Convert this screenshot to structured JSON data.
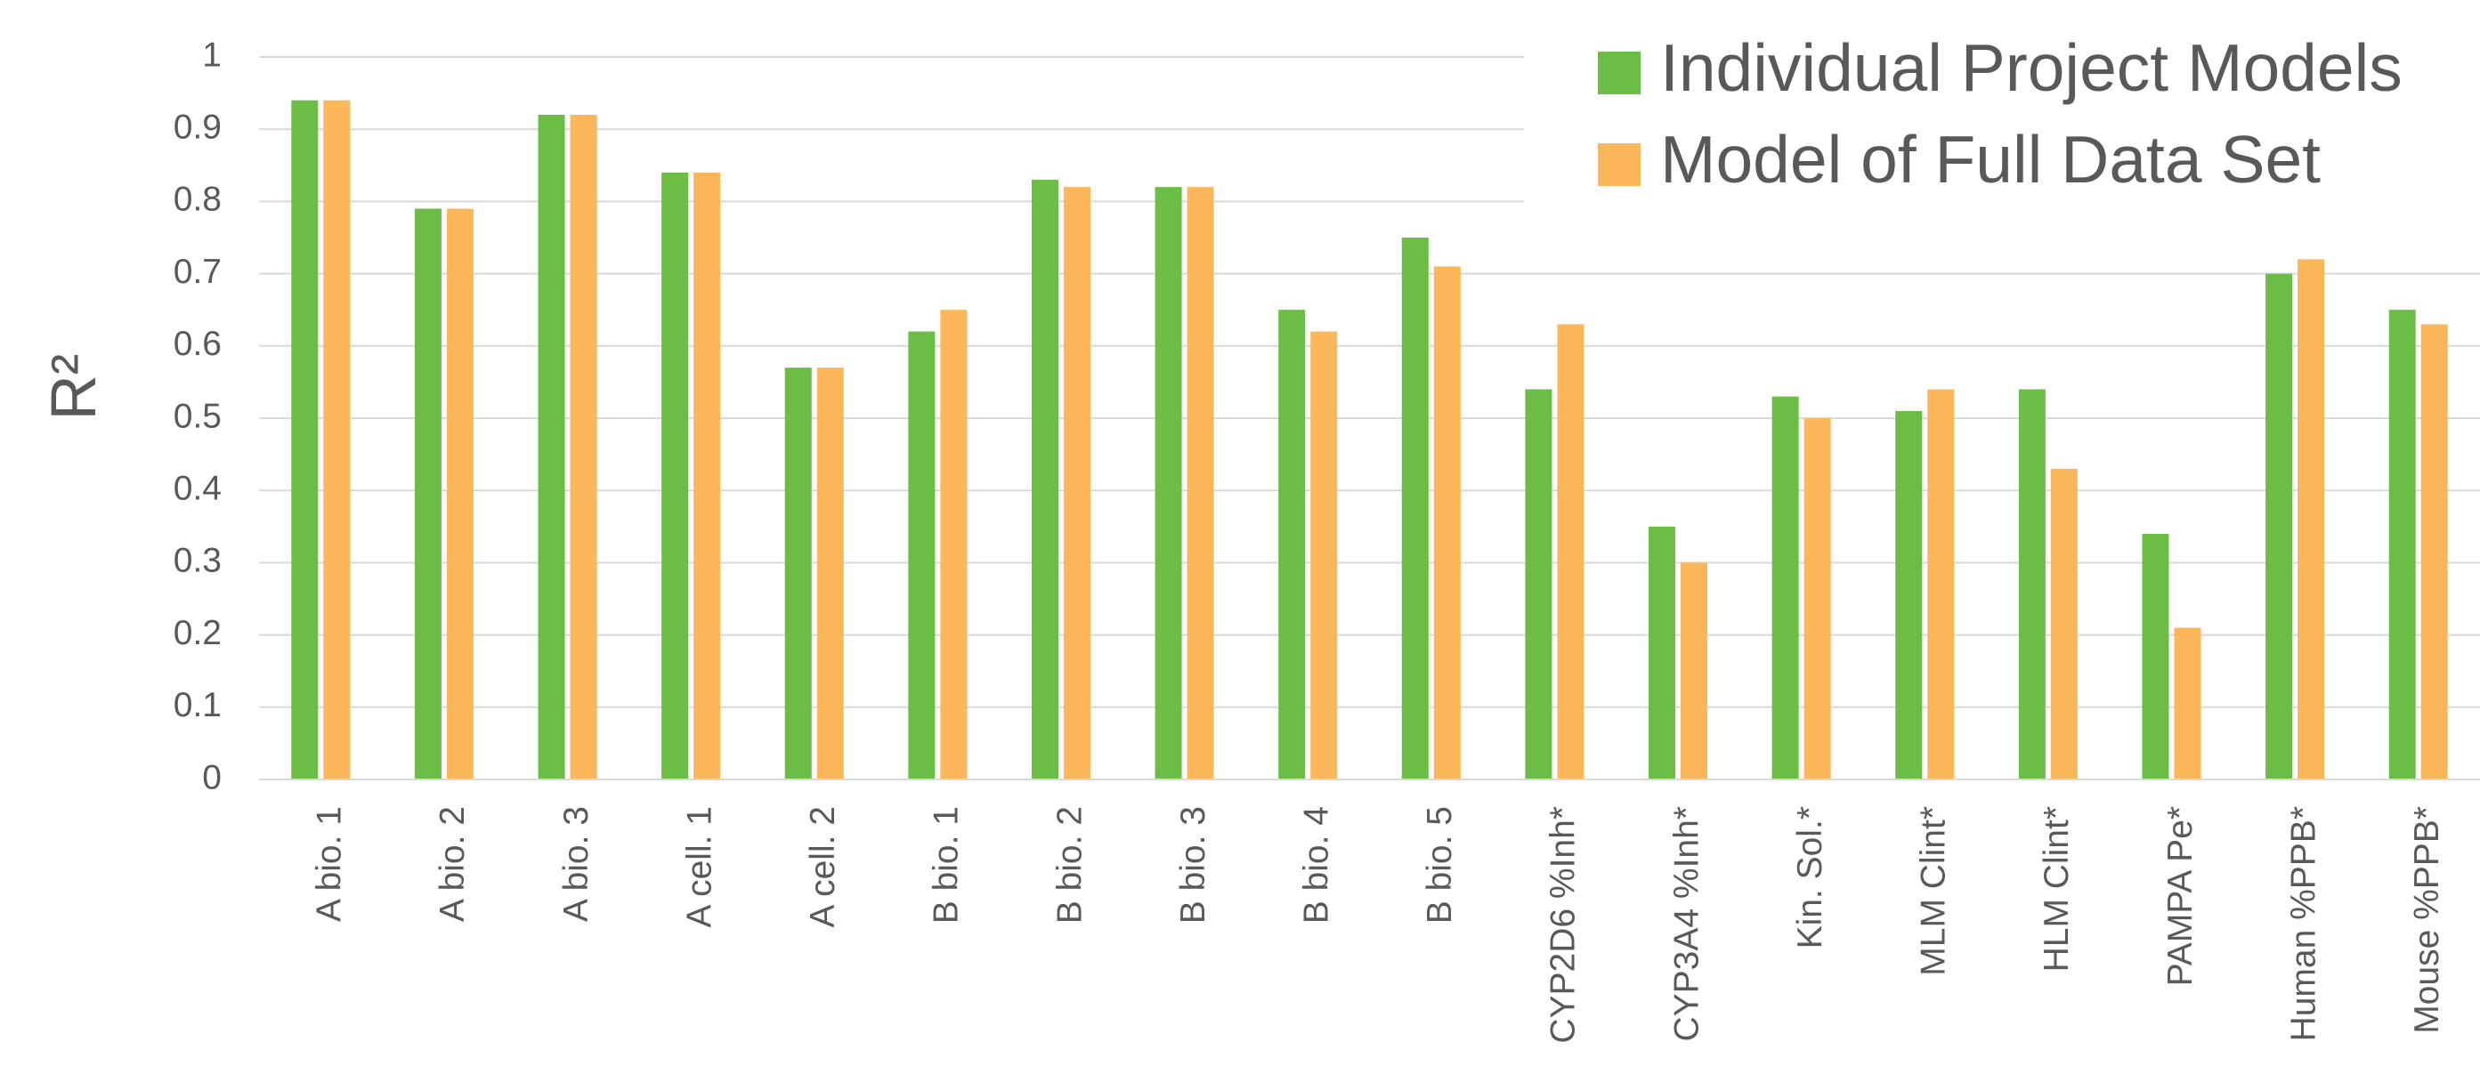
{
  "chart_data": {
    "type": "bar",
    "y_label": "R²",
    "categories": [
      "A bio. 1",
      "A bio. 2",
      "A bio. 3",
      "A cell. 1",
      "A cell. 2",
      "B bio. 1",
      "B bio. 2",
      "B bio. 3",
      "B bio. 4",
      "B bio. 5",
      "CYP2D6 %Inh*",
      "CYP3A4 %Inh*",
      "Kin. Sol.*",
      "MLM Clint*",
      "HLM Clint*",
      "PAMPA Pe*",
      "Human %PPB*",
      "Mouse %PPB*"
    ],
    "series": [
      {
        "name": "Individual Project Models",
        "color": "#6cbd45",
        "values": [
          0.94,
          0.79,
          0.92,
          0.84,
          0.57,
          0.62,
          0.83,
          0.82,
          0.65,
          0.75,
          0.54,
          0.35,
          0.53,
          0.51,
          0.54,
          0.34,
          0.7,
          0.65
        ]
      },
      {
        "name": "Model of Full Data Set",
        "color": "#fbb75a",
        "values": [
          0.94,
          0.79,
          0.92,
          0.84,
          0.57,
          0.65,
          0.82,
          0.82,
          0.62,
          0.71,
          0.63,
          0.3,
          0.5,
          0.54,
          0.43,
          0.21,
          0.72,
          0.63
        ]
      }
    ],
    "ylim": [
      0,
      1
    ],
    "yticks": [
      0,
      0.1,
      0.2,
      0.3,
      0.4,
      0.5,
      0.6,
      0.7,
      0.8,
      0.9,
      1
    ],
    "grid": true,
    "legend": "upper right"
  }
}
